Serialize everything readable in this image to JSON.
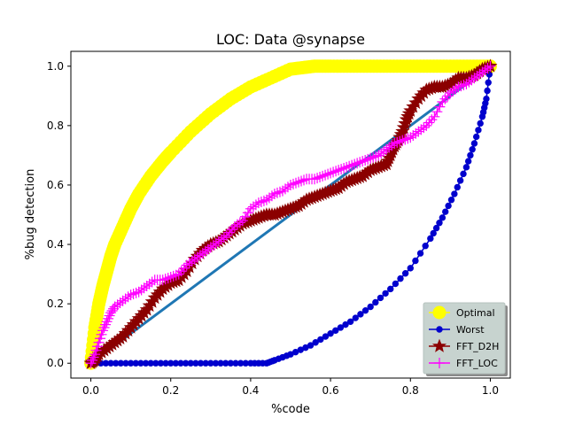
{
  "chart_data": {
    "type": "line",
    "title": "LOC: Data @synapse",
    "xlabel": "%code",
    "ylabel": "%bug detection",
    "xlim": [
      -0.05,
      1.05
    ],
    "ylim": [
      -0.05,
      1.05
    ],
    "xticks": [
      "0.0",
      "0.2",
      "0.4",
      "0.6",
      "0.8",
      "1.0"
    ],
    "xtick_values": [
      0,
      0.2,
      0.4,
      0.6,
      0.8,
      1.0
    ],
    "yticks": [
      "0.0",
      "0.2",
      "0.4",
      "0.6",
      "0.8",
      "1.0"
    ],
    "ytick_values": [
      0,
      0.2,
      0.4,
      0.6,
      0.8,
      1.0
    ],
    "grid": false,
    "legend_position": "lower-right",
    "series": [
      {
        "name": "Optimal",
        "color": "#ffff00",
        "marker": "circle-large",
        "x": [
          0,
          0.01,
          0.02,
          0.03,
          0.04,
          0.05,
          0.06,
          0.08,
          0.1,
          0.12,
          0.15,
          0.18,
          0.2,
          0.25,
          0.3,
          0.35,
          0.4,
          0.45,
          0.5,
          0.53,
          0.56,
          0.6,
          0.65,
          0.7,
          0.75,
          0.8,
          0.85,
          0.9,
          0.95,
          1.0
        ],
        "y": [
          0,
          0.12,
          0.2,
          0.26,
          0.31,
          0.36,
          0.4,
          0.46,
          0.52,
          0.57,
          0.63,
          0.68,
          0.71,
          0.78,
          0.84,
          0.89,
          0.93,
          0.96,
          0.99,
          0.995,
          1.0,
          1.0,
          1.0,
          1.0,
          1.0,
          1.0,
          1.0,
          1.0,
          1.0,
          1.0
        ]
      },
      {
        "name": "Worst",
        "color": "#0000cd",
        "marker": "circle",
        "x": [
          0,
          0.05,
          0.1,
          0.15,
          0.2,
          0.25,
          0.3,
          0.35,
          0.4,
          0.44,
          0.46,
          0.5,
          0.55,
          0.6,
          0.65,
          0.7,
          0.75,
          0.8,
          0.85,
          0.88,
          0.91,
          0.94,
          0.96,
          0.98,
          0.99,
          1.0
        ],
        "y": [
          0,
          0,
          0,
          0,
          0,
          0,
          0,
          0,
          0,
          0,
          0.01,
          0.03,
          0.06,
          0.1,
          0.14,
          0.19,
          0.25,
          0.32,
          0.42,
          0.49,
          0.57,
          0.66,
          0.74,
          0.83,
          0.89,
          1.0
        ]
      },
      {
        "name": "Diagonal",
        "color": "#1f77b4",
        "marker": "none",
        "x": [
          0,
          1.0
        ],
        "y": [
          0,
          1.0
        ]
      },
      {
        "name": "FFT_D2H",
        "color": "#8b0000",
        "marker": "star",
        "x": [
          0,
          0.01,
          0.02,
          0.04,
          0.06,
          0.08,
          0.1,
          0.12,
          0.14,
          0.16,
          0.18,
          0.2,
          0.22,
          0.24,
          0.26,
          0.28,
          0.3,
          0.32,
          0.34,
          0.36,
          0.38,
          0.4,
          0.42,
          0.44,
          0.46,
          0.48,
          0.5,
          0.52,
          0.54,
          0.56,
          0.58,
          0.6,
          0.62,
          0.64,
          0.66,
          0.68,
          0.7,
          0.72,
          0.74,
          0.75,
          0.76,
          0.77,
          0.78,
          0.79,
          0.8,
          0.82,
          0.84,
          0.86,
          0.88,
          0.9,
          0.92,
          0.94,
          0.96,
          0.98,
          1.0
        ],
        "y": [
          0,
          0.01,
          0.03,
          0.05,
          0.07,
          0.09,
          0.12,
          0.15,
          0.18,
          0.22,
          0.25,
          0.27,
          0.28,
          0.31,
          0.35,
          0.38,
          0.4,
          0.41,
          0.43,
          0.45,
          0.47,
          0.48,
          0.49,
          0.5,
          0.5,
          0.51,
          0.52,
          0.53,
          0.55,
          0.56,
          0.57,
          0.58,
          0.59,
          0.61,
          0.62,
          0.63,
          0.65,
          0.66,
          0.67,
          0.7,
          0.73,
          0.75,
          0.78,
          0.82,
          0.85,
          0.89,
          0.92,
          0.93,
          0.93,
          0.94,
          0.96,
          0.96,
          0.97,
          0.99,
          1.0
        ]
      },
      {
        "name": "FFT_LOC",
        "color": "#ff00ff",
        "marker": "plus",
        "x": [
          0,
          0.01,
          0.02,
          0.03,
          0.04,
          0.05,
          0.06,
          0.08,
          0.1,
          0.12,
          0.14,
          0.16,
          0.18,
          0.2,
          0.22,
          0.24,
          0.26,
          0.28,
          0.3,
          0.32,
          0.34,
          0.36,
          0.38,
          0.4,
          0.42,
          0.44,
          0.46,
          0.48,
          0.5,
          0.52,
          0.54,
          0.56,
          0.58,
          0.6,
          0.62,
          0.64,
          0.66,
          0.68,
          0.7,
          0.72,
          0.74,
          0.76,
          0.78,
          0.8,
          0.82,
          0.84,
          0.86,
          0.88,
          0.9,
          0.92,
          0.94,
          0.96,
          0.98,
          1.0
        ],
        "y": [
          0,
          0.03,
          0.07,
          0.11,
          0.14,
          0.17,
          0.19,
          0.21,
          0.23,
          0.24,
          0.26,
          0.28,
          0.28,
          0.29,
          0.3,
          0.33,
          0.35,
          0.37,
          0.39,
          0.41,
          0.43,
          0.46,
          0.48,
          0.52,
          0.54,
          0.55,
          0.57,
          0.58,
          0.6,
          0.61,
          0.62,
          0.62,
          0.63,
          0.64,
          0.65,
          0.66,
          0.67,
          0.68,
          0.69,
          0.7,
          0.72,
          0.74,
          0.75,
          0.76,
          0.78,
          0.8,
          0.83,
          0.88,
          0.91,
          0.93,
          0.94,
          0.96,
          0.98,
          1.0
        ]
      }
    ],
    "legend": [
      "Optimal",
      "Worst",
      "FFT_D2H",
      "FFT_LOC"
    ]
  }
}
